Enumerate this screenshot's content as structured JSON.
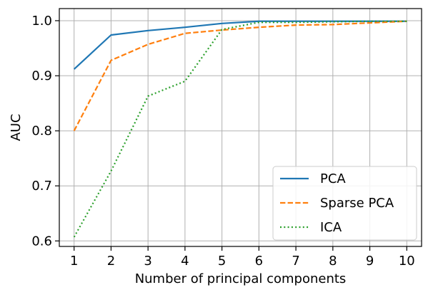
{
  "chart_data": {
    "type": "line",
    "title": "",
    "xlabel": "Number of principal components",
    "ylabel": "AUC",
    "x": [
      1,
      2,
      3,
      4,
      5,
      6,
      7,
      8,
      9,
      10
    ],
    "xlim": [
      0.6,
      10.4
    ],
    "ylim": [
      0.59,
      1.022
    ],
    "xticks": [
      "1",
      "2",
      "3",
      "4",
      "5",
      "6",
      "7",
      "8",
      "9",
      "10"
    ],
    "yticks": [
      "0.6",
      "0.7",
      "0.8",
      "0.9",
      "1.0"
    ],
    "grid": true,
    "legend_position": "lower-right",
    "series": [
      {
        "name": "PCA",
        "color": "#1f77b4",
        "style": "solid",
        "values": [
          0.912,
          0.974,
          0.982,
          0.988,
          0.995,
          0.999,
          0.999,
          0.999,
          0.999,
          0.999
        ]
      },
      {
        "name": "Sparse PCA",
        "color": "#ff7f0e",
        "style": "dashed",
        "values": [
          0.8,
          0.928,
          0.957,
          0.977,
          0.983,
          0.988,
          0.992,
          0.993,
          0.996,
          0.999
        ]
      },
      {
        "name": "ICA",
        "color": "#2ca02c",
        "style": "dotted",
        "values": [
          0.607,
          0.727,
          0.863,
          0.89,
          0.984,
          0.997,
          0.997,
          0.998,
          0.999,
          0.999
        ]
      }
    ]
  }
}
